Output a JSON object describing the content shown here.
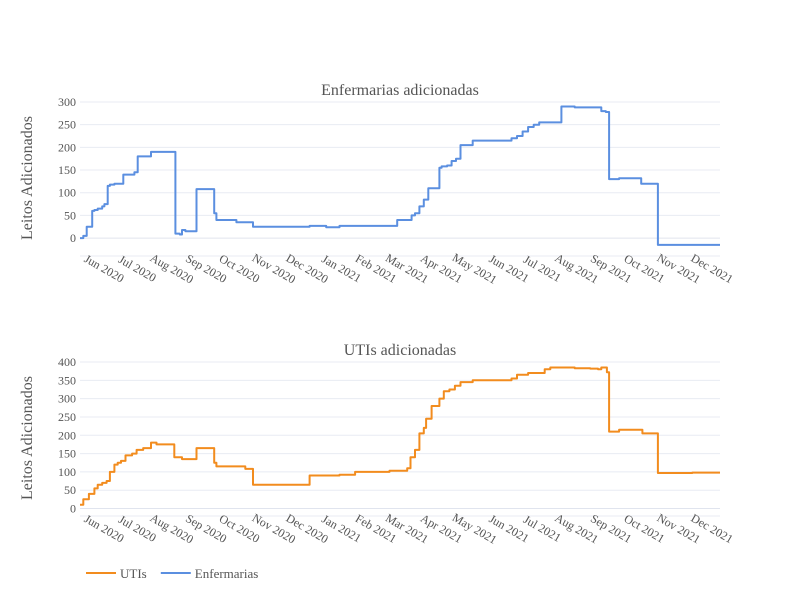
{
  "chart_data": [
    {
      "type": "line",
      "title": "Enfermarias adicionadas",
      "ylabel": "Leitos Adicionados",
      "ylim": [
        -35,
        300
      ],
      "yticks": [
        0,
        50,
        100,
        150,
        200,
        250,
        300
      ],
      "xticks": [
        "Jun 2020",
        "Jul 2020",
        "Aug 2020",
        "Sep 2020",
        "Oct 2020",
        "Nov 2020",
        "Dec 2020",
        "Jan 2021",
        "Feb 2021",
        "Mar 2021",
        "Apr 2021",
        "May 2021",
        "Jun 2021",
        "Jul 2021",
        "Aug 2021",
        "Sep 2021",
        "Oct 2021",
        "Nov 2021",
        "Dec 2021"
      ],
      "series": [
        {
          "name": "Enfermarias",
          "color": "#5b8fe0",
          "x": [
            "2020-05-12",
            "2020-05-15",
            "2020-05-18",
            "2020-05-20",
            "2020-05-23",
            "2020-05-25",
            "2020-05-28",
            "2020-06-01",
            "2020-06-03",
            "2020-06-06",
            "2020-06-08",
            "2020-06-12",
            "2020-06-16",
            "2020-06-20",
            "2020-06-25",
            "2020-06-30",
            "2020-07-03",
            "2020-07-05",
            "2020-07-10",
            "2020-07-15",
            "2020-07-20",
            "2020-07-25",
            "2020-07-30",
            "2020-08-05",
            "2020-08-06",
            "2020-08-10",
            "2020-08-12",
            "2020-08-15",
            "2020-08-20",
            "2020-08-25",
            "2020-09-01",
            "2020-09-09",
            "2020-09-10",
            "2020-09-12",
            "2020-09-20",
            "2020-09-30",
            "2020-10-08",
            "2020-10-15",
            "2020-11-01",
            "2020-11-15",
            "2020-12-01",
            "2020-12-05",
            "2020-12-20",
            "2021-01-01",
            "2021-01-15",
            "2021-02-01",
            "2021-02-08",
            "2021-02-15",
            "2021-02-22",
            "2021-03-01",
            "2021-03-03",
            "2021-03-07",
            "2021-03-10",
            "2021-03-14",
            "2021-03-18",
            "2021-03-22",
            "2021-03-26",
            "2021-04-01",
            "2021-04-03",
            "2021-04-08",
            "2021-04-12",
            "2021-04-16",
            "2021-04-20",
            "2021-05-01",
            "2021-05-15",
            "2021-05-28",
            "2021-06-01",
            "2021-06-05",
            "2021-06-10",
            "2021-06-15",
            "2021-06-20",
            "2021-06-25",
            "2021-06-30",
            "2021-07-05",
            "2021-07-10",
            "2021-07-20",
            "2021-08-01",
            "2021-08-15",
            "2021-08-20",
            "2021-08-25",
            "2021-08-29",
            "2021-08-30",
            "2021-09-01",
            "2021-09-10",
            "2021-09-20",
            "2021-09-30",
            "2021-10-10",
            "2021-10-14",
            "2021-10-15",
            "2021-11-01",
            "2021-11-15",
            "2021-12-01",
            "2021-12-10"
          ],
          "values": [
            0,
            5,
            25,
            25,
            60,
            62,
            65,
            70,
            75,
            115,
            118,
            120,
            120,
            140,
            140,
            145,
            180,
            180,
            180,
            190,
            190,
            190,
            190,
            190,
            10,
            8,
            18,
            15,
            15,
            108,
            108,
            108,
            55,
            40,
            40,
            35,
            35,
            25,
            25,
            25,
            25,
            27,
            24,
            27,
            27,
            27,
            27,
            27,
            40,
            40,
            40,
            50,
            55,
            70,
            85,
            110,
            110,
            155,
            158,
            160,
            170,
            175,
            205,
            215,
            215,
            215,
            215,
            220,
            225,
            235,
            245,
            250,
            255,
            255,
            255,
            290,
            288,
            288,
            288,
            280,
            278,
            278,
            130,
            132,
            132,
            120,
            120,
            120,
            -15,
            -15,
            -15,
            -15,
            -15
          ]
        }
      ]
    },
    {
      "type": "line",
      "title": "UTIs adicionadas",
      "ylabel": "Leitos Adicionados",
      "ylim": [
        -15,
        400
      ],
      "yticks": [
        0,
        50,
        100,
        150,
        200,
        250,
        300,
        350,
        400
      ],
      "xticks": [
        "Jun 2020",
        "Jul 2020",
        "Aug 2020",
        "Sep 2020",
        "Oct 2020",
        "Nov 2020",
        "Dec 2020",
        "Jan 2021",
        "Feb 2021",
        "Mar 2021",
        "Apr 2021",
        "May 2021",
        "Jun 2021",
        "Jul 2021",
        "Aug 2021",
        "Sep 2021",
        "Oct 2021",
        "Nov 2021",
        "Dec 2021"
      ],
      "series": [
        {
          "name": "UTIs",
          "color": "#f28c1e",
          "x": [
            "2020-05-12",
            "2020-05-15",
            "2020-05-20",
            "2020-05-25",
            "2020-05-28",
            "2020-06-01",
            "2020-06-05",
            "2020-06-08",
            "2020-06-12",
            "2020-06-15",
            "2020-06-18",
            "2020-06-22",
            "2020-06-28",
            "2020-07-02",
            "2020-07-08",
            "2020-07-14",
            "2020-07-15",
            "2020-07-20",
            "2020-08-01",
            "2020-08-05",
            "2020-08-12",
            "2020-08-20",
            "2020-08-25",
            "2020-09-08",
            "2020-09-10",
            "2020-09-12",
            "2020-09-20",
            "2020-10-08",
            "2020-10-10",
            "2020-10-15",
            "2020-11-01",
            "2020-11-15",
            "2020-12-01",
            "2020-12-05",
            "2020-12-15",
            "2021-01-01",
            "2021-01-15",
            "2021-02-01",
            "2021-02-15",
            "2021-02-22",
            "2021-03-01",
            "2021-03-03",
            "2021-03-06",
            "2021-03-10",
            "2021-03-14",
            "2021-03-18",
            "2021-03-20",
            "2021-03-25",
            "2021-04-01",
            "2021-04-05",
            "2021-04-10",
            "2021-04-15",
            "2021-04-20",
            "2021-05-01",
            "2021-05-15",
            "2021-05-28",
            "2021-06-05",
            "2021-06-10",
            "2021-06-20",
            "2021-07-01",
            "2021-07-05",
            "2021-07-10",
            "2021-07-20",
            "2021-08-01",
            "2021-08-15",
            "2021-08-22",
            "2021-08-25",
            "2021-08-30",
            "2021-09-01",
            "2021-09-10",
            "2021-09-20",
            "2021-10-01",
            "2021-10-14",
            "2021-10-15",
            "2021-11-01",
            "2021-11-15",
            "2021-12-01",
            "2021-12-10"
          ],
          "values": [
            10,
            25,
            40,
            55,
            65,
            70,
            75,
            100,
            120,
            125,
            130,
            145,
            150,
            160,
            165,
            165,
            180,
            175,
            175,
            140,
            135,
            135,
            165,
            165,
            125,
            115,
            115,
            108,
            108,
            65,
            65,
            65,
            65,
            90,
            90,
            92,
            100,
            100,
            103,
            103,
            103,
            110,
            140,
            160,
            205,
            220,
            245,
            280,
            300,
            320,
            325,
            335,
            345,
            350,
            350,
            350,
            355,
            365,
            370,
            370,
            380,
            385,
            385,
            383,
            382,
            380,
            385,
            372,
            210,
            215,
            215,
            205,
            205,
            97,
            97,
            98,
            98,
            98
          ]
        }
      ]
    }
  ],
  "legend": {
    "position": "bottom-left",
    "items": [
      {
        "name": "UTIs",
        "color": "#f28c1e"
      },
      {
        "name": "Enfermarias",
        "color": "#5b8fe0"
      }
    ]
  }
}
